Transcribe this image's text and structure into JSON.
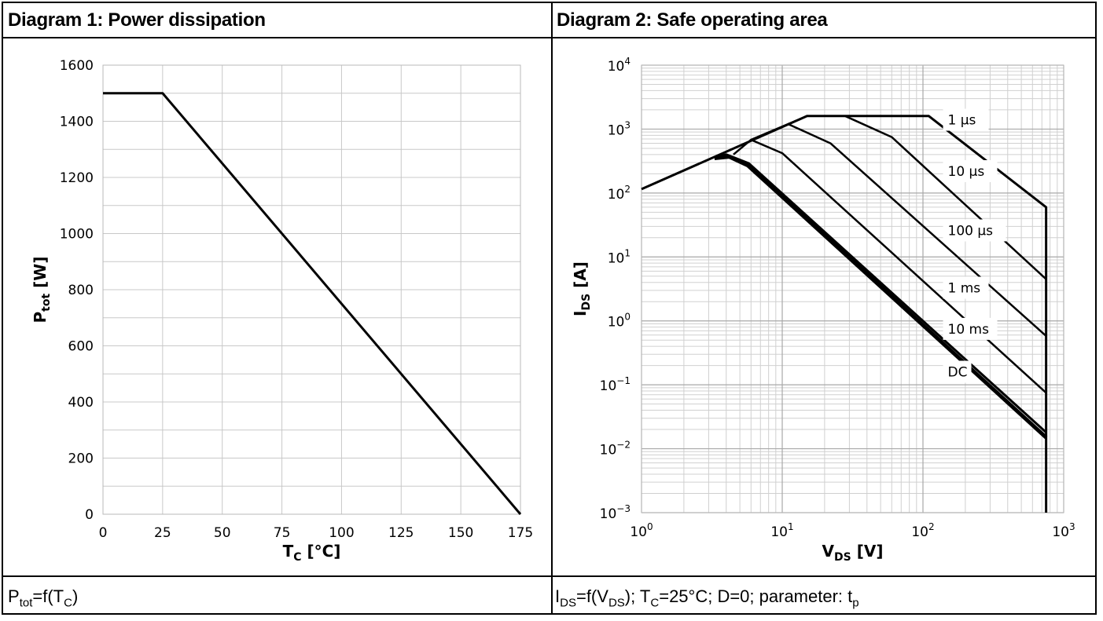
{
  "panels": [
    {
      "title": "Diagram 1: Power dissipation",
      "caption": {
        "parts": [
          [
            "P",
            ""
          ],
          [
            "tot",
            "sub"
          ],
          [
            "=f(T",
            ""
          ],
          [
            "C",
            "sub"
          ],
          [
            ")",
            ""
          ]
        ]
      }
    },
    {
      "title": "Diagram 2: Safe operating area",
      "caption": {
        "parts": [
          [
            "I",
            ""
          ],
          [
            "DS",
            "sub"
          ],
          [
            "=f(V",
            ""
          ],
          [
            "DS",
            "sub"
          ],
          [
            "); T",
            ""
          ],
          [
            "C",
            "sub"
          ],
          [
            "=25°C; D=0; parameter: t",
            ""
          ],
          [
            "p",
            "sub"
          ]
        ]
      }
    }
  ],
  "chart_data": [
    {
      "type": "line",
      "title": "Diagram 1: Power dissipation",
      "xlabel": {
        "main": "T",
        "sub": "C",
        "unit": " [°C]"
      },
      "ylabel": {
        "main": "P",
        "sub": "tot",
        "unit": " [W]"
      },
      "xlim": [
        0,
        175
      ],
      "ylim": [
        0,
        1600
      ],
      "xticks": [
        0,
        25,
        50,
        75,
        100,
        125,
        150,
        175
      ],
      "yticks": [
        0,
        200,
        400,
        600,
        800,
        1000,
        1200,
        1400,
        1600
      ],
      "grid": true,
      "series": [
        {
          "x": [
            0,
            25,
            175
          ],
          "y": [
            1500,
            1500,
            0
          ]
        }
      ]
    },
    {
      "type": "line",
      "title": "Diagram 2: Safe operating area",
      "xlabel": {
        "main": "V",
        "sub": "DS",
        "unit": " [V]"
      },
      "ylabel": {
        "main": "I",
        "sub": "DS",
        "unit": " [A]"
      },
      "xscale": "log",
      "yscale": "log",
      "xlim": [
        1,
        1000
      ],
      "ylim": [
        0.001,
        10000
      ],
      "xtick_exponents": [
        0,
        1,
        2,
        3
      ],
      "ytick_exponents": [
        -3,
        -2,
        -1,
        0,
        1,
        2,
        3,
        4
      ],
      "grid": true,
      "series": [
        {
          "name": "1 µs",
          "x": [
            1,
            15,
            110,
            750,
            750
          ],
          "y": [
            115,
            1600,
            1600,
            60,
            0.001
          ],
          "label_at": [
            150,
            1400
          ],
          "width": 3
        },
        {
          "name": "10 µs",
          "x": [
            11,
            15,
            28,
            60,
            750
          ],
          "y": [
            1200,
            1600,
            1600,
            750,
            4.5
          ],
          "label_at": [
            150,
            220
          ],
          "width": 2.5
        },
        {
          "name": "100 µs",
          "x": [
            6,
            11,
            22,
            750
          ],
          "y": [
            680,
            1200,
            600,
            0.58
          ],
          "label_at": [
            150,
            26
          ],
          "width": 2.5
        },
        {
          "name": "1 ms",
          "x": [
            4.5,
            6,
            10,
            750
          ],
          "y": [
            400,
            680,
            420,
            0.075
          ],
          "label_at": [
            150,
            3.3
          ],
          "width": 2.5
        },
        {
          "name": "10 ms",
          "x": [
            3.3,
            4,
            5.8,
            750
          ],
          "y": [
            360,
            400,
            290,
            0.018
          ],
          "label_at": [
            150,
            0.75
          ],
          "width": 3
        },
        {
          "name": "DC",
          "x": [
            3.3,
            4.2,
            5.7,
            750
          ],
          "y": [
            350,
            370,
            270,
            0.015
          ],
          "label_at": [
            150,
            0.16
          ],
          "width": 5
        }
      ]
    }
  ]
}
